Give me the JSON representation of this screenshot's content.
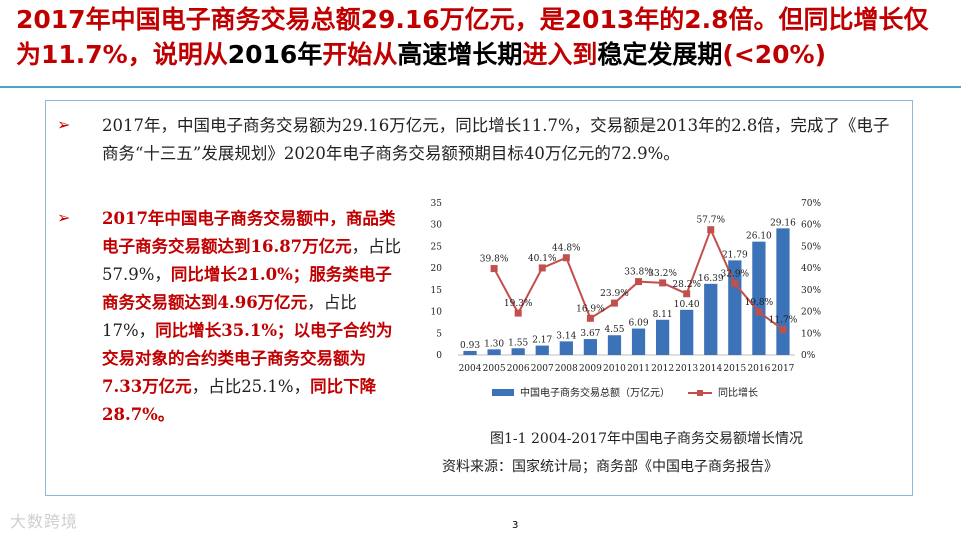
{
  "header": {
    "title_parts": [
      {
        "text": "2017年中国电子商务交易总额29.16万亿元，是2013年的2.8倍。但同比增长仅为11.7%，说明从",
        "style": "red"
      },
      {
        "text": "2016年",
        "style": "black"
      },
      {
        "text": "开始从",
        "style": "red"
      },
      {
        "text": "高速增长期",
        "style": "black"
      },
      {
        "text": "进入到",
        "style": "red"
      },
      {
        "text": "稳定发展期",
        "style": "black"
      },
      {
        "text": "(<20%)",
        "style": "red"
      }
    ]
  },
  "bullets": {
    "marker": "➢",
    "p1": "2017年，中国电子商务交易额为29.16万亿元，同比增长11.7%，交易额是2013年的2.8倍，完成了《电子商务“十三五”发展规划》2020年电子商务交易额预期目标40万亿元的72.9%。",
    "p2_parts": [
      {
        "text": "2017年中国电子商务交易额中，商品类电子商务交易额达到16.87万亿元",
        "style": "red"
      },
      {
        "text": "，占比57.9%，",
        "style": "plain"
      },
      {
        "text": "同比增长21.0%；服务类电子商务交易额达到4.96万亿元",
        "style": "red"
      },
      {
        "text": "，占比17%，",
        "style": "plain"
      },
      {
        "text": "同比增长35.1%；以电子合约为交易对象的合约类电子商务交易额为7.33万亿元",
        "style": "red"
      },
      {
        "text": "，占比25.1%，",
        "style": "plain"
      },
      {
        "text": "同比下降28.7%。",
        "style": "red"
      }
    ]
  },
  "chart_data": {
    "type": "bar",
    "categories": [
      "2004",
      "2005",
      "2006",
      "2007",
      "2008",
      "2009",
      "2010",
      "2011",
      "2012",
      "2013",
      "2014",
      "2015",
      "2016",
      "2017"
    ],
    "series": [
      {
        "name": "中国电子商务交易总额（万亿元）",
        "type": "bar",
        "axis": "left",
        "values": [
          0.93,
          1.3,
          1.55,
          2.17,
          3.14,
          3.67,
          4.55,
          6.09,
          8.11,
          10.4,
          16.39,
          21.79,
          26.1,
          29.16
        ],
        "labels": [
          "0.93",
          "1.30",
          "1.55",
          "2.17",
          "3.14",
          "3.67",
          "4.55",
          "6.09",
          "8.11",
          "10.40",
          "16.39",
          "21.79",
          "26.10",
          "29.16"
        ]
      },
      {
        "name": "同比增长",
        "type": "line",
        "axis": "right",
        "values": [
          null,
          39.8,
          19.3,
          40.1,
          44.8,
          16.9,
          23.9,
          33.8,
          33.2,
          28.2,
          57.7,
          32.9,
          19.8,
          11.7
        ],
        "labels": [
          null,
          "39.8%",
          "19.3%",
          "40.1%",
          "44.8%",
          "16.9%",
          "23.9%",
          "33.8%",
          "33.2%",
          "28.2%",
          "57.7%",
          "32.9%",
          "19.8%",
          "11.7%"
        ]
      }
    ],
    "yleft": {
      "min": 0,
      "max": 35,
      "ticks": [
        "0",
        "5",
        "10",
        "15",
        "20",
        "25",
        "30",
        "35"
      ]
    },
    "yright": {
      "min": 0,
      "max": 70,
      "ticks": [
        "0%",
        "10%",
        "20%",
        "30%",
        "40%",
        "50%",
        "60%",
        "70%"
      ]
    },
    "legend_position": "bottom",
    "caption": "图1-1  2004-2017年中国电子商务交易额增长情况",
    "source": "资料来源：国家统计局；商务部《中国电子商务报告》",
    "colors": {
      "bar": "#3c72b7",
      "line": "#c0504d"
    }
  },
  "footer": {
    "page_number": "3",
    "watermark": "大数跨境"
  }
}
